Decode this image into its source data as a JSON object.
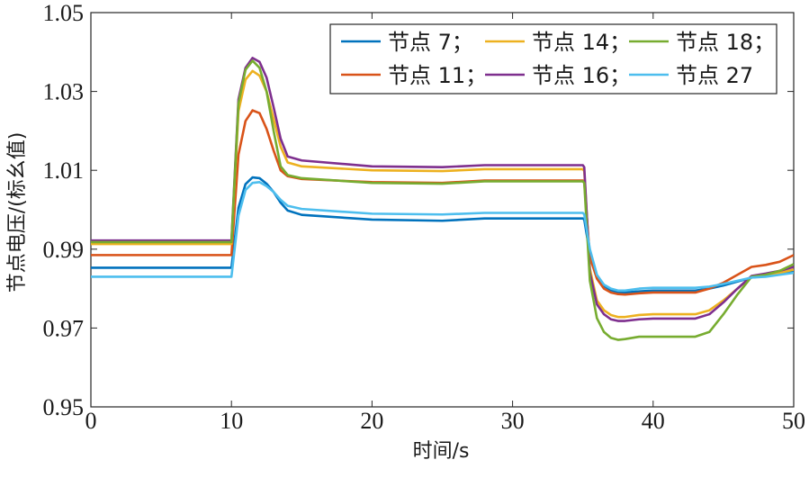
{
  "chart_data": {
    "type": "line",
    "xlabel": "时间/s",
    "ylabel": "节点电压/(标幺值)",
    "xlim": [
      0,
      50
    ],
    "ylim": [
      0.95,
      1.05
    ],
    "xticks": [
      0,
      10,
      20,
      30,
      40,
      50
    ],
    "yticks": [
      0.95,
      0.97,
      0.99,
      1.01,
      1.03,
      1.05
    ],
    "ytick_labels": [
      "0.95",
      "0.97",
      "0.99",
      "1.01",
      "1.03",
      "1.05"
    ],
    "legend_position": "top-right",
    "series": [
      {
        "name": "节点 7；",
        "color": "#0072BD",
        "x": [
          0,
          9.9,
          10,
          10.5,
          11,
          11.5,
          12,
          12.5,
          13,
          13.5,
          14,
          15,
          20,
          25,
          28,
          30,
          35,
          35.1,
          35.5,
          36,
          36.5,
          37,
          37.5,
          38,
          39,
          40,
          43,
          44,
          45,
          46,
          47,
          48,
          49,
          50
        ],
        "y": [
          0.9853,
          0.9853,
          0.9853,
          1.0005,
          1.0065,
          1.0082,
          1.008,
          1.0066,
          1.0045,
          1.0018,
          0.9998,
          0.9987,
          0.9975,
          0.9972,
          0.9978,
          0.9978,
          0.9978,
          0.9975,
          0.9888,
          0.983,
          0.9807,
          0.9796,
          0.9791,
          0.979,
          0.9793,
          0.9795,
          0.9795,
          0.98,
          0.9808,
          0.9818,
          0.9828,
          0.9832,
          0.9838,
          0.9845
        ]
      },
      {
        "name": "节点 11；",
        "color": "#D95319",
        "x": [
          0,
          9.9,
          10,
          10.5,
          11,
          11.5,
          12,
          12.5,
          13,
          13.5,
          14,
          15,
          20,
          25,
          28,
          30,
          35,
          35.1,
          35.5,
          36,
          36.5,
          37,
          37.5,
          38,
          39,
          40,
          43,
          44,
          45,
          46,
          47,
          48,
          49,
          50
        ],
        "y": [
          0.9885,
          0.9885,
          0.9885,
          1.014,
          1.0225,
          1.0252,
          1.0245,
          1.0205,
          1.015,
          1.01,
          1.0085,
          1.0078,
          1.007,
          1.0068,
          1.0074,
          1.0074,
          1.0074,
          1.007,
          0.988,
          0.9825,
          0.98,
          0.979,
          0.9786,
          0.9785,
          0.9788,
          0.979,
          0.979,
          0.98,
          0.9815,
          0.9835,
          0.9855,
          0.986,
          0.9868,
          0.9885
        ]
      },
      {
        "name": "节点 14；",
        "color": "#EDB120",
        "x": [
          0,
          9.9,
          10,
          10.5,
          11,
          11.5,
          12,
          12.5,
          13,
          13.5,
          14,
          15,
          20,
          25,
          28,
          30,
          35,
          35.1,
          35.5,
          36,
          36.5,
          37,
          37.5,
          38,
          39,
          40,
          43,
          44,
          45,
          46,
          47,
          48,
          49,
          50
        ],
        "y": [
          0.9913,
          0.9913,
          0.9913,
          1.025,
          1.033,
          1.0352,
          1.034,
          1.03,
          1.023,
          1.016,
          1.012,
          1.011,
          1.01,
          1.0098,
          1.0103,
          1.0103,
          1.0103,
          1.0098,
          0.985,
          0.977,
          0.9745,
          0.9733,
          0.9728,
          0.9728,
          0.9733,
          0.9735,
          0.9735,
          0.9745,
          0.977,
          0.98,
          0.983,
          0.9835,
          0.984,
          0.9848
        ]
      },
      {
        "name": "节点 16；",
        "color": "#7E2F8E",
        "x": [
          0,
          9.9,
          10,
          10.5,
          11,
          11.5,
          12,
          12.5,
          13,
          13.5,
          14,
          15,
          20,
          25,
          28,
          30,
          35,
          35.1,
          35.5,
          36,
          36.5,
          37,
          37.5,
          38,
          39,
          40,
          43,
          44,
          45,
          46,
          47,
          48,
          49,
          50
        ],
        "y": [
          0.9922,
          0.9922,
          0.9922,
          1.028,
          1.036,
          1.0385,
          1.0375,
          1.0335,
          1.026,
          1.018,
          1.0135,
          1.0125,
          1.011,
          1.0108,
          1.0113,
          1.0113,
          1.0113,
          1.0108,
          0.984,
          0.976,
          0.9735,
          0.9722,
          0.9718,
          0.9718,
          0.9722,
          0.9724,
          0.9724,
          0.9735,
          0.9765,
          0.98,
          0.9832,
          0.9838,
          0.9845,
          0.9855
        ]
      },
      {
        "name": "节点 18；",
        "color": "#77AC30",
        "x": [
          0,
          9.9,
          10,
          10.5,
          11,
          11.5,
          12,
          12.5,
          13,
          13.5,
          14,
          15,
          20,
          25,
          28,
          30,
          35,
          35.1,
          35.5,
          36,
          36.5,
          37,
          37.5,
          38,
          39,
          40,
          43,
          44,
          45,
          46,
          47,
          48,
          49,
          50
        ],
        "y": [
          0.9918,
          0.9918,
          0.9918,
          1.027,
          1.0355,
          1.0378,
          1.036,
          1.03,
          1.02,
          1.011,
          1.0088,
          1.008,
          1.0068,
          1.0066,
          1.0072,
          1.0072,
          1.0072,
          1.0068,
          0.982,
          0.9725,
          0.969,
          0.9675,
          0.967,
          0.9672,
          0.9678,
          0.9678,
          0.9678,
          0.969,
          0.9735,
          0.9785,
          0.983,
          0.9835,
          0.9845,
          0.9862
        ]
      },
      {
        "name": "节点 27",
        "color": "#4DBEEE",
        "x": [
          0,
          9.9,
          10,
          10.5,
          11,
          11.5,
          12,
          12.5,
          13,
          13.5,
          14,
          15,
          20,
          25,
          28,
          30,
          35,
          35.1,
          35.5,
          36,
          36.5,
          37,
          37.5,
          38,
          39,
          40,
          43,
          44,
          45,
          46,
          47,
          48,
          49,
          50
        ],
        "y": [
          0.983,
          0.983,
          0.983,
          0.9985,
          1.005,
          1.0068,
          1.007,
          1.006,
          1.0045,
          1.0025,
          1.001,
          1.0002,
          0.999,
          0.9988,
          0.9992,
          0.9992,
          0.9992,
          0.9988,
          0.99,
          0.9835,
          0.981,
          0.98,
          0.9795,
          0.9795,
          0.98,
          0.9802,
          0.9802,
          0.9805,
          0.9812,
          0.982,
          0.9828,
          0.983,
          0.9835,
          0.984
        ]
      }
    ]
  }
}
